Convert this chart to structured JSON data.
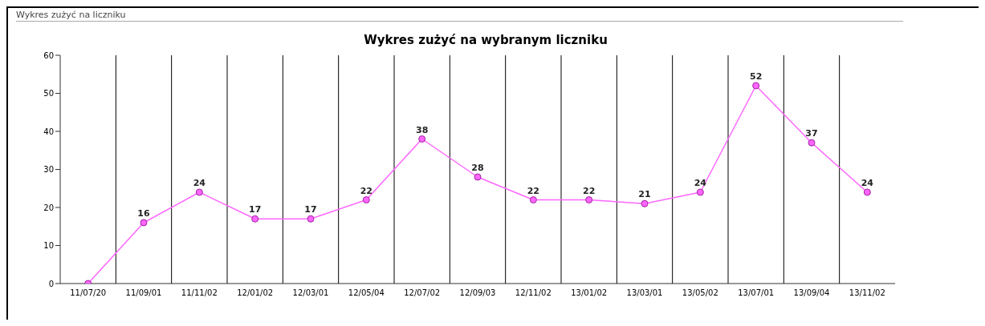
{
  "chart_data": {
    "type": "line",
    "title": "Wykres zużyć na wybranym liczniku",
    "annotations": [
      "Wykres zużyć na liczniku"
    ],
    "categories": [
      "11/07/20",
      "11/09/01",
      "11/11/02",
      "12/01/02",
      "12/03/01",
      "12/05/04",
      "12/07/02",
      "12/09/03",
      "12/11/02",
      "13/01/02",
      "13/03/01",
      "13/05/02",
      "13/07/01",
      "13/09/04",
      "13/11/02"
    ],
    "series": [
      {
        "color": "#ff66ff",
        "values": [
          0,
          16,
          24,
          17,
          17,
          22,
          38,
          28,
          22,
          22,
          21,
          24,
          52,
          37,
          24
        ],
        "value_labels": [
          null,
          "16",
          "24",
          "17",
          "17",
          "22",
          "38",
          "28",
          "22",
          "22",
          "21",
          "24",
          "52",
          "37",
          "24"
        ]
      }
    ],
    "ylim": [
      0,
      60
    ],
    "yticks": [
      0,
      10,
      20,
      30,
      40,
      50,
      60
    ],
    "grid": "x",
    "marker": "circle",
    "line_style": "solid",
    "legend": false
  }
}
